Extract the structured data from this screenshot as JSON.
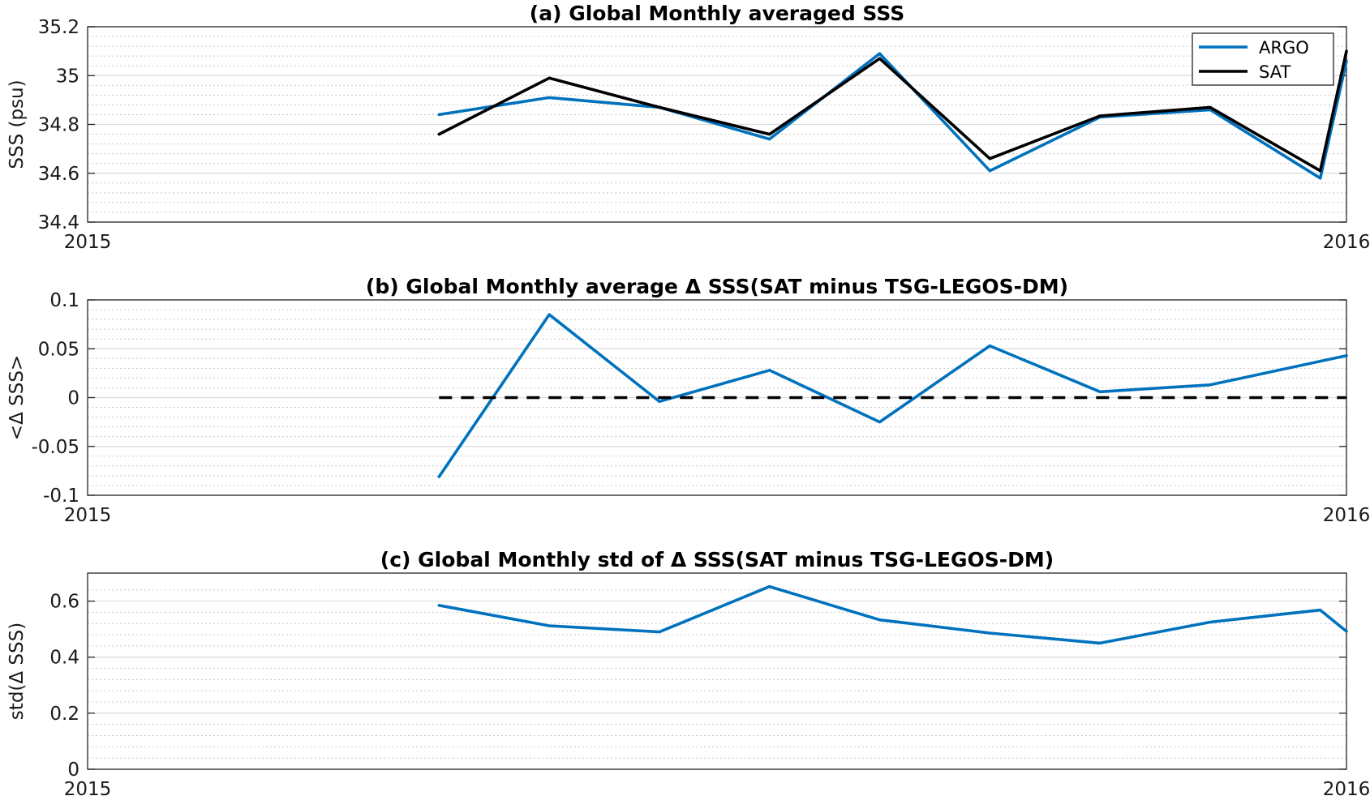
{
  "colors": {
    "argo": "#0072BD",
    "sat": "#000000",
    "major_grid": "#dcdcdc",
    "minor_grid": "#c8c8c8"
  },
  "chart_data": [
    {
      "type": "line",
      "title": "(a) Global Monthly averaged SSS",
      "ylabel": "SSS (psu)",
      "xlabel": "",
      "xlim": [
        0,
        12
      ],
      "xticks": [
        {
          "v": 0,
          "label": "2015"
        },
        {
          "v": 12,
          "label": "2016"
        }
      ],
      "ylim": [
        34.4,
        35.2
      ],
      "yticks": [
        {
          "v": 34.4,
          "label": "34.4"
        },
        {
          "v": 34.6,
          "label": "34.6"
        },
        {
          "v": 34.8,
          "label": "34.8"
        },
        {
          "v": 35.0,
          "label": "35"
        },
        {
          "v": 35.2,
          "label": "35.2"
        }
      ],
      "grid": true,
      "legend": "top-right",
      "series": [
        {
          "name": "ARGO",
          "color": "#0072BD",
          "dashed": false,
          "x": [
            3.35,
            4.4,
            5.45,
            6.5,
            7.55,
            8.6,
            9.65,
            10.7,
            11.75,
            12.0
          ],
          "y": [
            34.84,
            34.91,
            34.87,
            34.74,
            35.09,
            34.61,
            34.83,
            34.86,
            34.58,
            35.06
          ]
        },
        {
          "name": "SAT",
          "color": "#000000",
          "dashed": false,
          "x": [
            3.35,
            4.4,
            5.45,
            6.5,
            7.55,
            8.6,
            9.65,
            10.7,
            11.75,
            12.0
          ],
          "y": [
            34.76,
            34.99,
            34.87,
            34.76,
            35.07,
            34.66,
            34.835,
            34.87,
            34.61,
            35.1
          ]
        }
      ]
    },
    {
      "type": "line",
      "title": "(b) Global Monthly average Δ SSS(SAT minus TSG-LEGOS-DM)",
      "ylabel": "<Δ SSS>",
      "xlabel": "",
      "xlim": [
        0,
        12
      ],
      "xticks": [
        {
          "v": 0,
          "label": "2015"
        },
        {
          "v": 12,
          "label": "2016"
        }
      ],
      "ylim": [
        -0.1,
        0.1
      ],
      "yticks": [
        {
          "v": -0.1,
          "label": "-0.1"
        },
        {
          "v": -0.05,
          "label": "-0.05"
        },
        {
          "v": 0,
          "label": "0"
        },
        {
          "v": 0.05,
          "label": "0.05"
        },
        {
          "v": 0.1,
          "label": "0.1"
        }
      ],
      "grid": true,
      "series": [
        {
          "color": "#0072BD",
          "dashed": false,
          "x": [
            3.35,
            4.4,
            5.45,
            6.5,
            7.55,
            8.6,
            9.65,
            10.7,
            12.0
          ],
          "y": [
            -0.081,
            0.085,
            -0.004,
            0.028,
            -0.025,
            0.053,
            0.006,
            0.013,
            0.043
          ]
        },
        {
          "color": "#000000",
          "dashed": true,
          "x": [
            3.35,
            12.0
          ],
          "y": [
            0,
            0
          ]
        }
      ]
    },
    {
      "type": "line",
      "title": "(c) Global Monthly std of Δ SSS(SAT minus TSG-LEGOS-DM)",
      "ylabel": "std(Δ SSS)",
      "xlabel": "",
      "xlim": [
        0,
        12
      ],
      "xticks": [
        {
          "v": 0,
          "label": "2015"
        },
        {
          "v": 12,
          "label": "2016"
        }
      ],
      "ylim": [
        0,
        0.7
      ],
      "yticks": [
        {
          "v": 0,
          "label": "0"
        },
        {
          "v": 0.2,
          "label": "0.2"
        },
        {
          "v": 0.4,
          "label": "0.4"
        },
        {
          "v": 0.6,
          "label": "0.6"
        }
      ],
      "grid": true,
      "series": [
        {
          "color": "#0072BD",
          "dashed": false,
          "x": [
            3.35,
            4.4,
            5.45,
            6.5,
            7.55,
            8.6,
            9.65,
            10.7,
            11.75,
            12.0
          ],
          "y": [
            0.585,
            0.512,
            0.49,
            0.652,
            0.533,
            0.486,
            0.45,
            0.525,
            0.568,
            0.492
          ]
        }
      ]
    }
  ]
}
